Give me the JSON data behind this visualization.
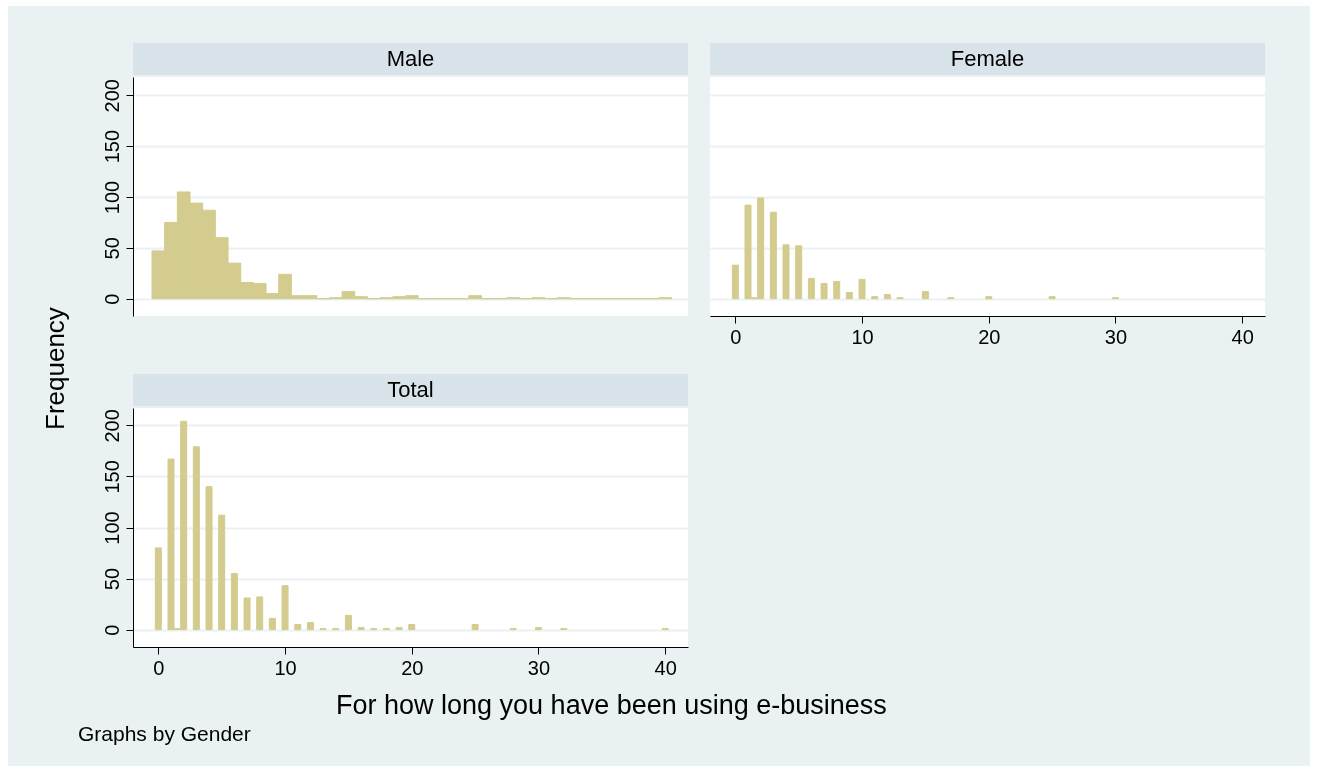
{
  "chart_data": [
    {
      "type": "histogram",
      "title": "Male",
      "color": "#d3cc8e",
      "bins": [
        -0.5,
        0.5,
        1.5,
        2.5,
        3.5,
        4.5,
        5.5,
        6.5,
        7.5,
        8.5,
        9.5,
        10.5,
        11.5,
        12.5,
        13.5,
        14.5,
        15.5,
        16.5,
        17.5,
        18.5,
        19.5,
        20.5,
        21.5,
        22.5,
        23.5,
        24.5,
        25.5,
        26.5,
        27.5,
        28.5,
        29.5,
        30.5,
        31.5,
        32.5,
        33.5,
        34.5,
        35.5,
        36.5,
        37.5,
        38.5,
        39.5,
        40.5
      ],
      "values": [
        47,
        75,
        105,
        94,
        87,
        60,
        35,
        16,
        15,
        5,
        24,
        3,
        3,
        0,
        1,
        7,
        2,
        0,
        1,
        2,
        3,
        0,
        0,
        0,
        0,
        3,
        0,
        0,
        1,
        0,
        1,
        0,
        1,
        0,
        0,
        0,
        0,
        0,
        0,
        0,
        1
      ],
      "xlim": [
        -2,
        41.8
      ],
      "ylim": [
        -17,
        218
      ],
      "yticks": [
        0,
        50,
        100,
        150,
        200
      ],
      "grid": "y",
      "tick_labels": "y",
      "ylabel": "Frequency"
    },
    {
      "type": "bar",
      "title": "Female",
      "color": "#d3cc8e",
      "x": [
        0,
        1,
        1.5,
        2,
        3,
        4,
        5,
        6,
        7,
        8,
        9,
        10,
        11,
        12,
        13,
        15,
        17,
        20,
        25,
        30
      ],
      "values": [
        33,
        92,
        1,
        99,
        85,
        53,
        52,
        20,
        15,
        17,
        6,
        19,
        2,
        4,
        1,
        7,
        1,
        2,
        2,
        1
      ],
      "xlim": [
        -2,
        41.8
      ],
      "xticks": [
        0,
        10,
        20,
        30,
        40
      ],
      "ylim": [
        -17,
        218
      ],
      "yticks": [
        0,
        50,
        100,
        150,
        200
      ],
      "grid": "y",
      "tick_labels": "x"
    },
    {
      "type": "bar",
      "title": "Total",
      "color": "#d3cc8e",
      "x": [
        0,
        1,
        1.5,
        2,
        3,
        4,
        5,
        6,
        7,
        8,
        9,
        10,
        11,
        12,
        13,
        14,
        15,
        16,
        17,
        18,
        19,
        20,
        25,
        28,
        30,
        32,
        40
      ],
      "values": [
        80,
        167,
        1,
        204,
        179,
        140,
        112,
        55,
        31,
        32,
        11,
        43,
        5,
        7,
        1,
        1,
        14,
        2,
        1,
        1,
        2,
        5,
        5,
        1,
        2,
        1,
        1
      ],
      "xlim": [
        -2,
        41.8
      ],
      "xticks": [
        0,
        10,
        20,
        30,
        40
      ],
      "ylim": [
        -17,
        217
      ],
      "yticks": [
        0,
        50,
        100,
        150,
        200
      ],
      "grid": "y",
      "xlabel": "For how long you have been using e-business",
      "annotations": [
        "Graphs by Gender"
      ]
    }
  ]
}
